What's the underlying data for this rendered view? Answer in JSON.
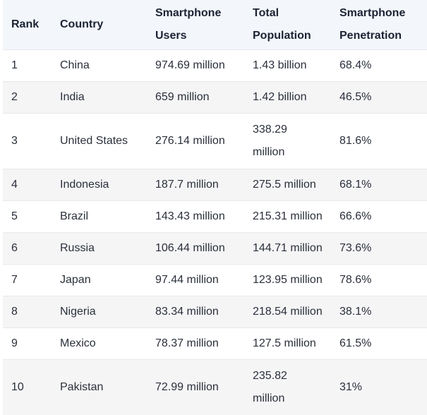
{
  "table": {
    "headers": [
      "Rank",
      "Country",
      "Smartphone Users",
      "Total Population",
      "Smartphone Penetration"
    ],
    "rows": [
      [
        "1",
        "China",
        "974.69 million",
        "1.43 billion",
        "68.4%"
      ],
      [
        "2",
        "India",
        "659 million",
        "1.42 billion",
        "46.5%"
      ],
      [
        "3",
        "United States",
        "276.14 million",
        "338.29 million",
        "81.6%"
      ],
      [
        "4",
        "Indonesia",
        "187.7 million",
        "275.5 million",
        "68.1%"
      ],
      [
        "5",
        "Brazil",
        "143.43 million",
        "215.31 million",
        "66.6%"
      ],
      [
        "6",
        "Russia",
        "106.44 million",
        "144.71 million",
        "73.6%"
      ],
      [
        "7",
        "Japan",
        "97.44 million",
        "123.95 million",
        "78.6%"
      ],
      [
        "8",
        "Nigeria",
        "83.34 million",
        "218.54 million",
        "38.1%"
      ],
      [
        "9",
        "Mexico",
        "78.37 million",
        "127.5 million",
        "61.5%"
      ],
      [
        "10",
        "Pakistan",
        "72.99 million",
        "235.82 million",
        "31%"
      ]
    ]
  }
}
